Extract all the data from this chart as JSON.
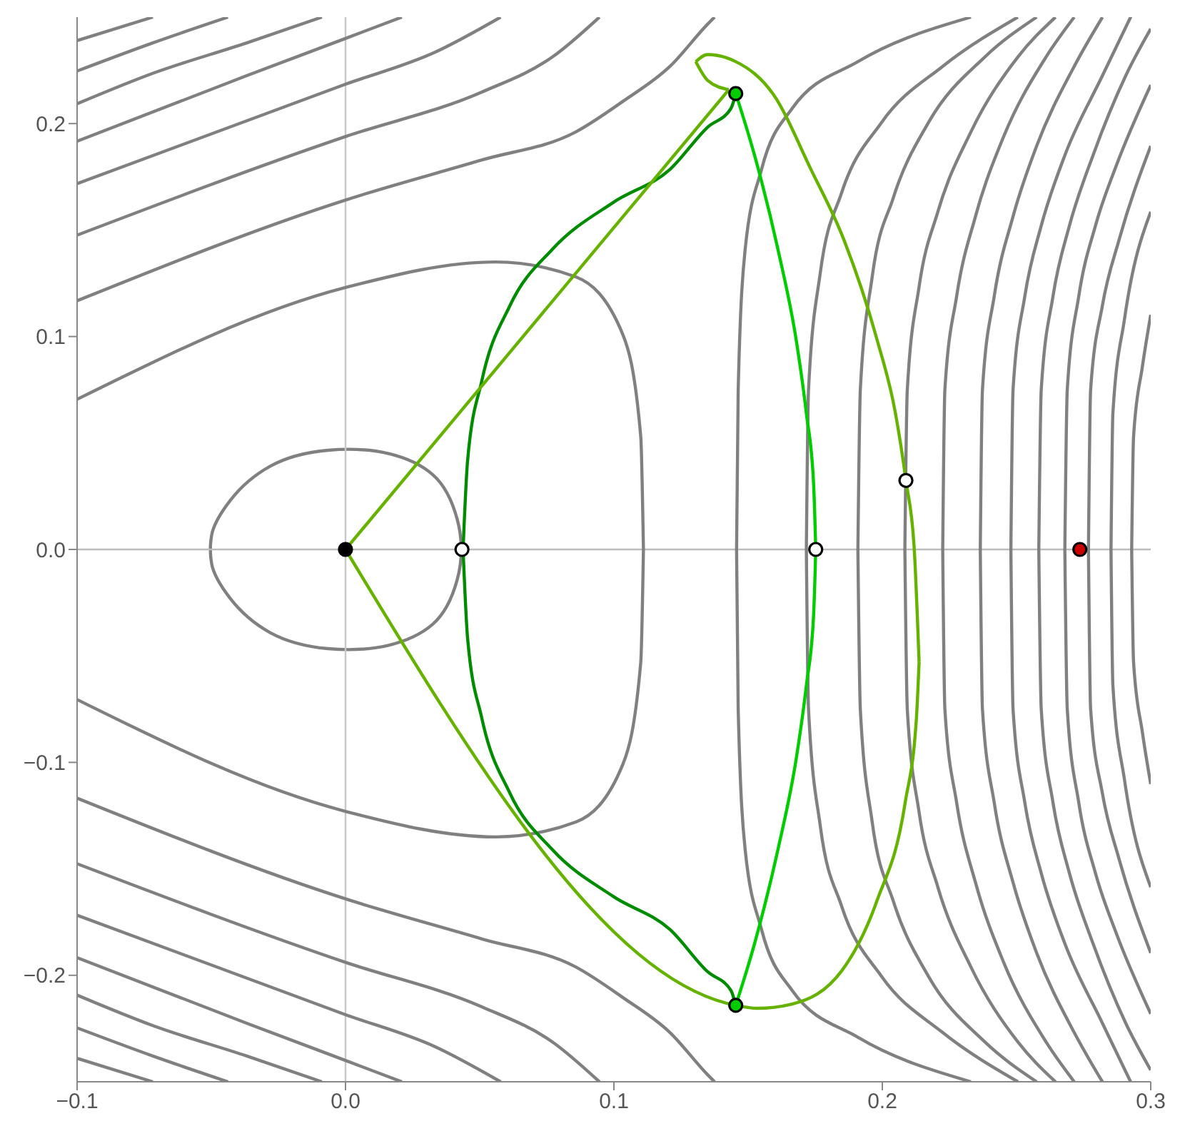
{
  "chart_data": {
    "type": "line",
    "xlim": [
      -0.1,
      0.3
    ],
    "ylim": [
      -0.25,
      0.25
    ],
    "xticks": [
      {
        "value": -0.1,
        "label": "−0.1"
      },
      {
        "value": 0,
        "label": "0.0"
      },
      {
        "value": 0.1,
        "label": "0.1"
      },
      {
        "value": 0.2,
        "label": "0.2"
      },
      {
        "value": 0.3,
        "label": "0.3"
      }
    ],
    "yticks": [
      {
        "value": -0.2,
        "label": "−0.2"
      },
      {
        "value": -0.1,
        "label": "−0.1"
      },
      {
        "value": 0,
        "label": "0.0"
      },
      {
        "value": 0.1,
        "label": "0.1"
      },
      {
        "value": 0.2,
        "label": "0.2"
      }
    ],
    "marker": "none",
    "line_style": "solid",
    "ref_lines": [
      {
        "axis": "x",
        "value": 0,
        "color": "#c8c8c8"
      },
      {
        "axis": "y",
        "value": 0,
        "color": "#bcbcbc"
      }
    ],
    "series": [
      {
        "color": "#808080",
        "x": [
          -0.1,
          0,
          0.056,
          0.0858,
          0.1033,
          0.11,
          0.111
        ],
        "values": [
          0.0705,
          0.123,
          0.135,
          0.128,
          0.101,
          0.053,
          0
        ]
      },
      {
        "color": "#808080",
        "x": [
          -0.1,
          0,
          0.056,
          0.0858,
          0.1033,
          0.11,
          0.111
        ],
        "values": [
          -0.0705,
          -0.123,
          -0.135,
          -0.128,
          -0.101,
          -0.053,
          0
        ]
      },
      {
        "color": "#808080",
        "x": [
          -0.1,
          0,
          0.0508,
          0.0858,
          0.1033,
          0.1209,
          0.1349,
          0.1375
        ],
        "values": [
          0.1168,
          0.1641,
          0.1829,
          0.1961,
          0.2104,
          0.2269,
          0.2467,
          0.25
        ]
      },
      {
        "color": "#808080",
        "x": [
          -0.1,
          0,
          0.0508,
          0.0771,
          0.0946
        ],
        "values": [
          0.1476,
          0.1939,
          0.2148,
          0.2313,
          0.25
        ]
      },
      {
        "color": "#808080",
        "x": [
          -0.1,
          0,
          0.0333,
          0.0578
        ],
        "values": [
          0.1718,
          0.2185,
          0.2335,
          0.25
        ]
      },
      {
        "color": "#808080",
        "x": [
          -0.1,
          -0.0368,
          0,
          0.021
        ],
        "values": [
          0.1917,
          0.2225,
          0.24,
          0.25
        ]
      },
      {
        "color": "#808080",
        "x": [
          -0.1,
          -0.0718,
          -0.0368,
          -0.0088
        ],
        "values": [
          0.2093,
          0.2236,
          0.2379,
          0.25
        ]
      },
      {
        "color": "#808080",
        "x": [
          -0.1,
          -0.0718,
          -0.0438
        ],
        "values": [
          0.2247,
          0.2379,
          0.25
        ]
      },
      {
        "color": "#808080",
        "x": [
          -0.1,
          -0.0718
        ],
        "values": [
          0.239,
          0.25
        ]
      },
      {
        "color": "#808080",
        "x": [
          -0.1,
          0,
          0.0508,
          0.0858,
          0.1033,
          0.1209,
          0.1349,
          0.1375
        ],
        "values": [
          -0.1168,
          -0.1641,
          -0.1829,
          -0.1961,
          -0.2104,
          -0.2269,
          -0.2467,
          -0.25
        ]
      },
      {
        "color": "#808080",
        "x": [
          -0.1,
          0,
          0.0508,
          0.0771,
          0.0946
        ],
        "values": [
          -0.1476,
          -0.1939,
          -0.2148,
          -0.2313,
          -0.25
        ]
      },
      {
        "color": "#808080",
        "x": [
          -0.1,
          0,
          0.0333,
          0.0578
        ],
        "values": [
          -0.1718,
          -0.2185,
          -0.2335,
          -0.25
        ]
      },
      {
        "color": "#808080",
        "x": [
          -0.1,
          -0.0368,
          0,
          0.021
        ],
        "values": [
          -0.1917,
          -0.2225,
          -0.24,
          -0.25
        ]
      },
      {
        "color": "#808080",
        "x": [
          -0.1,
          -0.0718,
          -0.0368,
          -0.0088
        ],
        "values": [
          -0.2093,
          -0.2236,
          -0.2379,
          -0.25
        ]
      },
      {
        "color": "#808080",
        "x": [
          -0.1,
          -0.0718,
          -0.0438
        ],
        "values": [
          -0.2247,
          -0.2379,
          -0.25
        ]
      },
      {
        "color": "#808080",
        "x": [
          -0.1,
          -0.0718
        ],
        "values": [
          -0.239,
          -0.25
        ]
      },
      {
        "color": "#808080",
        "x": [
          0.1457,
          0.1463,
          0.1489,
          0.155,
          0.1664,
          0.1909,
          0.233
        ],
        "values": [
          0,
          0.0749,
          0.141,
          0.1785,
          0.2071,
          0.2291,
          0.25
        ]
      },
      {
        "color": "#808080",
        "x": [
          0.1457,
          0.1463,
          0.1489,
          0.155,
          0.1664,
          0.1909,
          0.233
        ],
        "values": [
          0,
          -0.0749,
          -0.141,
          -0.1785,
          -0.2071,
          -0.2291,
          -0.25
        ]
      },
      {
        "color": "#808080",
        "x": [
          0.1717,
          0.1725,
          0.1769,
          0.1848,
          0.1997,
          0.2225,
          0.2505
        ],
        "values": [
          0,
          0.0749,
          0.13,
          0.1674,
          0.2005,
          0.2269,
          0.25
        ]
      },
      {
        "color": "#808080",
        "x": [
          0.1717,
          0.1725,
          0.1769,
          0.1848,
          0.1997,
          0.2225,
          0.2505
        ],
        "values": [
          0,
          -0.0749,
          -0.13,
          -0.1674,
          -0.2005,
          -0.2269,
          -0.25
        ]
      },
      {
        "color": "#808080",
        "x": [
          0.1909,
          0.1918,
          0.1962,
          0.2041,
          0.2172,
          0.2382,
          0.2575
        ],
        "values": [
          0,
          0.0749,
          0.1278,
          0.1652,
          0.2005,
          0.2313,
          0.25
        ]
      },
      {
        "color": "#808080",
        "x": [
          0.1909,
          0.1918,
          0.1962,
          0.2041,
          0.2172,
          0.2382,
          0.2575
        ],
        "values": [
          0,
          -0.0749,
          -0.1278,
          -0.1652,
          -0.2005,
          -0.2313,
          -0.25
        ]
      },
      {
        "color": "#808080",
        "x": [
          0.2084,
          0.2093,
          0.2137,
          0.2207,
          0.233,
          0.2505,
          0.2645
        ],
        "values": [
          0,
          0.0749,
          0.1234,
          0.1586,
          0.1961,
          0.2313,
          0.25
        ]
      },
      {
        "color": "#808080",
        "x": [
          0.2084,
          0.2093,
          0.2137,
          0.2207,
          0.233,
          0.2505,
          0.2645
        ],
        "values": [
          0,
          -0.0749,
          -0.1234,
          -0.1586,
          -0.1961,
          -0.2313,
          -0.25
        ]
      },
      {
        "color": "#808080",
        "x": [
          0.2225,
          0.2233,
          0.2277,
          0.2347,
          0.2452,
          0.261,
          0.2715
        ],
        "values": [
          0,
          0.0749,
          0.119,
          0.1564,
          0.1939,
          0.2313,
          0.25
        ]
      },
      {
        "color": "#808080",
        "x": [
          0.2225,
          0.2233,
          0.2277,
          0.2347,
          0.2452,
          0.261,
          0.2715
        ],
        "values": [
          0,
          -0.0749,
          -0.119,
          -0.1564,
          -0.1939,
          -0.2313,
          -0.25
        ]
      },
      {
        "color": "#808080",
        "x": [
          0.2365,
          0.2373,
          0.2417,
          0.2487,
          0.2575,
          0.2715,
          0.282
        ],
        "values": [
          0,
          0.0749,
          0.119,
          0.1564,
          0.1895,
          0.2269,
          0.25
        ]
      },
      {
        "color": "#808080",
        "x": [
          0.2365,
          0.2373,
          0.2417,
          0.2487,
          0.2575,
          0.2715,
          0.282
        ],
        "values": [
          0,
          -0.0749,
          -0.119,
          -0.1564,
          -0.1895,
          -0.2269,
          -0.25
        ]
      },
      {
        "color": "#808080",
        "x": [
          0.2479,
          0.2487,
          0.2531,
          0.2592,
          0.268,
          0.282,
          0.2925
        ],
        "values": [
          0,
          0.0749,
          0.119,
          0.152,
          0.1851,
          0.2225,
          0.25
        ]
      },
      {
        "color": "#808080",
        "x": [
          0.2479,
          0.2487,
          0.2531,
          0.2592,
          0.268,
          0.282,
          0.2925
        ],
        "values": [
          0,
          -0.0749,
          -0.119,
          -0.152,
          -0.1851,
          -0.2225,
          -0.25
        ]
      },
      {
        "color": "#808080",
        "x": [
          0.2583,
          0.2592,
          0.2636,
          0.2697,
          0.2785,
          0.2907,
          0.3
        ],
        "values": [
          0,
          0.0749,
          0.119,
          0.152,
          0.1851,
          0.2225,
          0.2445
        ]
      },
      {
        "color": "#808080",
        "x": [
          0.2583,
          0.2592,
          0.2636,
          0.2697,
          0.2785,
          0.2907,
          0.3
        ],
        "values": [
          0,
          -0.0749,
          -0.119,
          -0.152,
          -0.1851,
          -0.2225,
          -0.2445
        ]
      },
      {
        "color": "#808080",
        "x": [
          0.268,
          0.2689,
          0.2732,
          0.2794,
          0.2873,
          0.3
        ],
        "values": [
          0,
          0.0749,
          0.119,
          0.152,
          0.1807,
          0.2181
        ]
      },
      {
        "color": "#808080",
        "x": [
          0.268,
          0.2689,
          0.2732,
          0.2794,
          0.2873,
          0.3
        ],
        "values": [
          0,
          -0.0749,
          -0.119,
          -0.152,
          -0.1807,
          -0.2181
        ]
      },
      {
        "color": "#808080",
        "x": [
          0.2768,
          0.2776,
          0.282,
          0.2882,
          0.3
        ],
        "values": [
          0,
          0.0749,
          0.1146,
          0.1454,
          0.1895
        ]
      },
      {
        "color": "#808080",
        "x": [
          0.2768,
          0.2776,
          0.282,
          0.2882,
          0.3
        ],
        "values": [
          0,
          -0.0749,
          -0.1146,
          -0.1454,
          -0.1895
        ]
      },
      {
        "color": "#808080",
        "x": [
          0.2852,
          0.2859,
          0.2902,
          0.3
        ],
        "values": [
          0,
          0.0639,
          0.108,
          0.1586
        ]
      },
      {
        "color": "#808080",
        "x": [
          0.2852,
          0.2859,
          0.2902,
          0.3
        ],
        "values": [
          0,
          -0.0639,
          -0.108,
          -0.1586
        ]
      },
      {
        "color": "#808080",
        "x": [
          0.2929,
          0.2936,
          0.2969,
          0.3
        ],
        "values": [
          0,
          0.0529,
          0.0859,
          0.1102
        ]
      },
      {
        "color": "#808080",
        "x": [
          0.2929,
          0.2936,
          0.2969,
          0.3
        ],
        "values": [
          0,
          -0.0529,
          -0.0859,
          -0.1102
        ]
      },
      {
        "color": "#008c00",
        "x": [
          0.0438,
          0.0455,
          0.0508,
          0.0613,
          0.0771,
          0.0998,
          0.1209,
          0.1349,
          0.1436,
          0.1454
        ],
        "values": [
          0,
          0.0419,
          0.0793,
          0.1146,
          0.141,
          0.163,
          0.1785,
          0.1983,
          0.2071,
          0.2141
        ]
      },
      {
        "color": "#008c00",
        "x": [
          0.0438,
          0.0455,
          0.0508,
          0.0613,
          0.0771,
          0.0998,
          0.1209,
          0.1349,
          0.1436,
          0.1454
        ],
        "values": [
          0,
          -0.0419,
          -0.0793,
          -0.1146,
          -0.141,
          -0.163,
          -0.1785,
          -0.1983,
          -0.2071,
          -0.2141
        ]
      },
      {
        "color": "#66b200",
        "x": [
          0,
          0.1428
        ],
        "values": [
          0,
          0.2159
        ]
      },
      {
        "color": "#66b200",
        "x": [
          0.1305,
          0.1349,
          0.1428
        ],
        "values": [
          0.2291,
          0.2203,
          0.2159
        ]
      },
      {
        "color": "#66b200",
        "x": [
          0.1305,
          0.1349,
          0.1454,
          0.1594,
          0.1734,
          0.1857,
          0.1979,
          0.2049,
          0.2088,
          0.2119,
          0.2137
        ],
        "values": [
          0.2291,
          0.2324,
          0.2291,
          0.2137,
          0.1785,
          0.1454,
          0.0991,
          0.0639,
          0.0324,
          0,
          -0.0529
        ]
      },
      {
        "color": "#66b200",
        "x": [
          0,
          0.1454,
          0.1533,
          0.1664,
          0.1848,
          0.198,
          0.2085,
          0.2127,
          0.2137
        ],
        "values": [
          0,
          -0.2141,
          -0.2155,
          -0.2135,
          -0.198,
          -0.165,
          -0.119,
          -0.0793,
          -0.0529
        ]
      },
      {
        "color": "#00cc00",
        "x": [
          0.1454,
          0.1524,
          0.1611,
          0.1681,
          0.1717,
          0.1744,
          0.1752
        ],
        "values": [
          0.2141,
          0.1851,
          0.141,
          0.0969,
          0.0639,
          0.0308,
          0
        ]
      },
      {
        "color": "#00cc00",
        "x": [
          0.1454,
          0.1524,
          0.1611,
          0.1681,
          0.1717,
          0.1744,
          0.1752
        ],
        "values": [
          -0.2141,
          -0.1851,
          -0.141,
          -0.0969,
          -0.0639,
          -0.0308,
          0
        ]
      },
      {
        "type": "scatter",
        "marker": "circle",
        "color": "#000000",
        "x": [
          0
        ],
        "values": [
          0
        ]
      },
      {
        "type": "scatter",
        "marker": "circle",
        "color": "#ffffff",
        "x": [
          0.0434,
          0.1752,
          0.2088
        ],
        "values": [
          0,
          0,
          0.0324
        ]
      },
      {
        "type": "scatter",
        "marker": "circle",
        "color": "#00cc00",
        "x": [
          0.1454,
          0.1454
        ],
        "values": [
          0.2141,
          -0.2141
        ]
      },
      {
        "type": "scatter",
        "marker": "circle",
        "color": "#cc0000",
        "x": [
          0.2736
        ],
        "values": [
          0
        ]
      }
    ]
  }
}
